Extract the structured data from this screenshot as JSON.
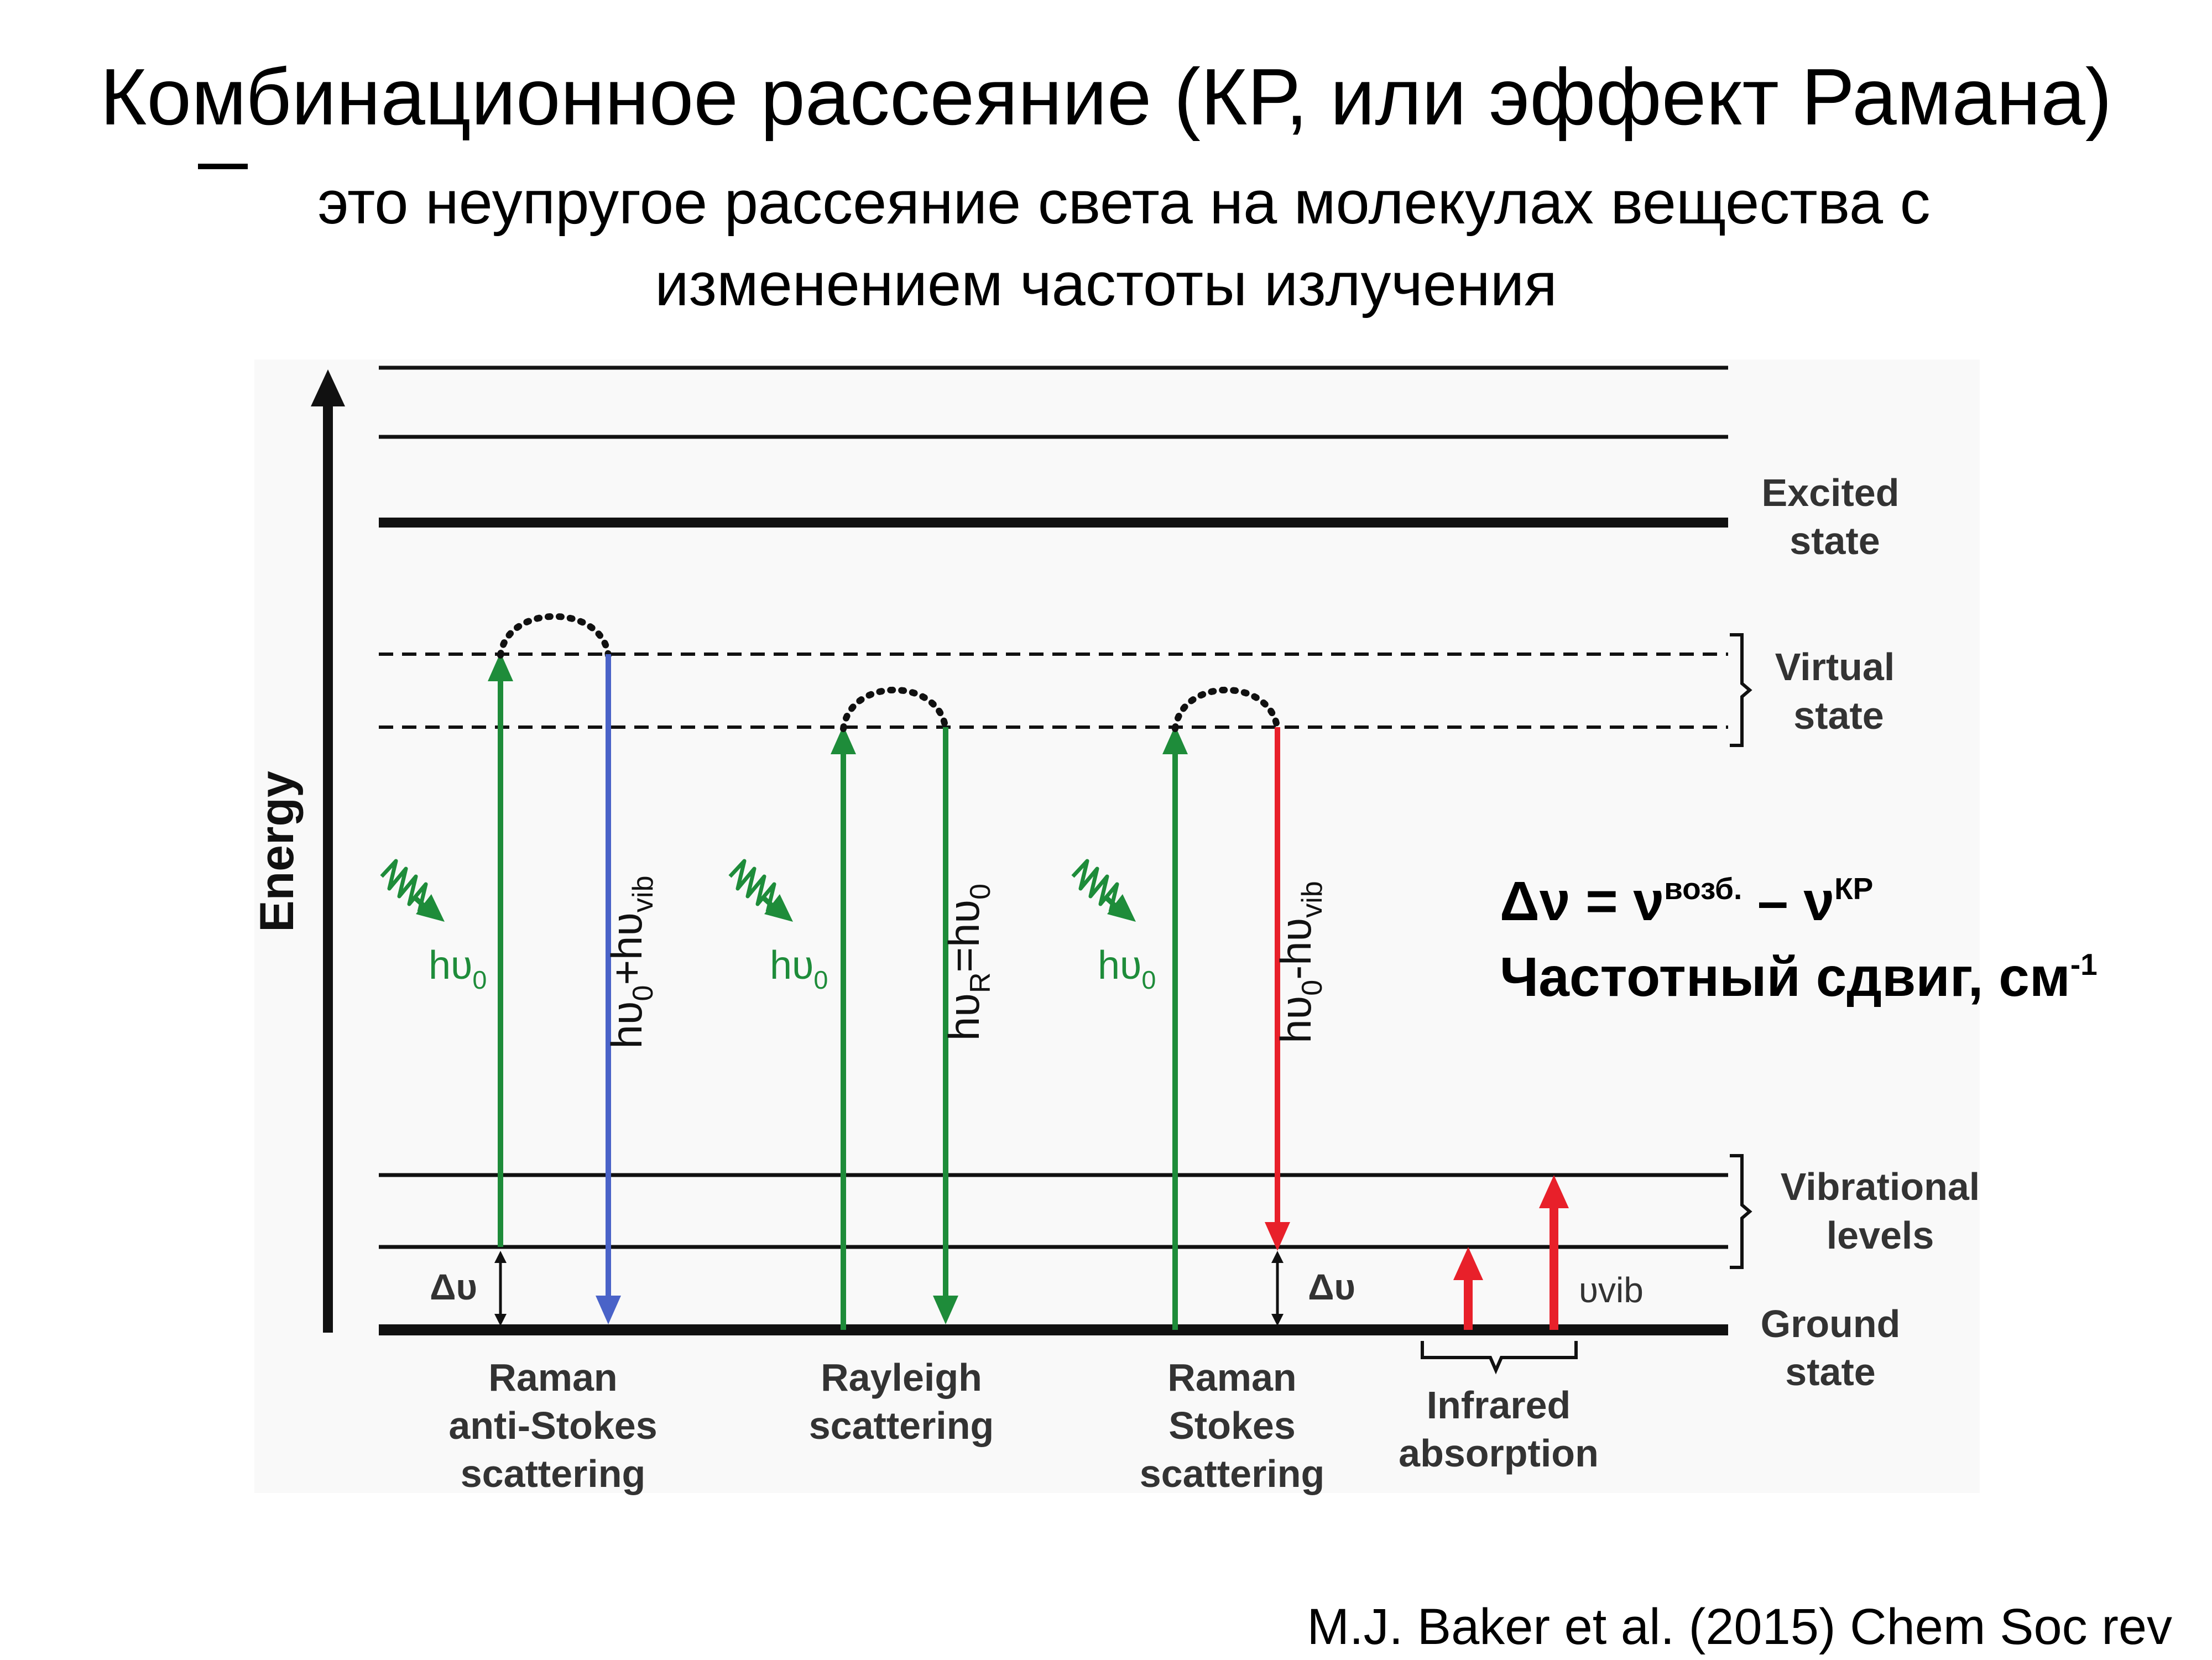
{
  "slide": {
    "title": "Комбинационное рассеяние (КР, или эффект Рамана)",
    "subtitle_line1": "это неупругое рассеяние света на молекулах вещества с",
    "subtitle_line2": "изменением частоты излучения",
    "citation": "M.J. Baker et al. (2015) Chem Soc rev"
  },
  "formula": {
    "line1_delta": "Δν = ν",
    "line1_sup1": "возб.",
    "line1_mid": " – ν",
    "line1_sup2": "КР",
    "line2_text": "Частотный сдвиг, см",
    "line2_sup": "-1"
  },
  "diagram": {
    "axis_label": "Energy",
    "levels": {
      "excited_line1": "Excited",
      "excited_line2": "state",
      "virtual_line1": "Virtual",
      "virtual_line2": "state",
      "vibrational_line1": "Vibrational",
      "vibrational_line2": "levels",
      "ground_line1": "Ground",
      "ground_line2": "state"
    },
    "processes": {
      "anti_stokes": [
        "Raman",
        "anti-Stokes",
        "scattering"
      ],
      "rayleigh": [
        "Rayleigh",
        "scattering"
      ],
      "stokes": [
        "Raman",
        "Stokes",
        "scattering"
      ],
      "infrared": [
        "Infrared",
        "absorption"
      ]
    },
    "photon_labels": {
      "incident": "hυ",
      "incident_sub": "0",
      "anti_stokes_out": "hυ",
      "anti_stokes_out_sub1": "0",
      "anti_stokes_out_mid": "+hυ",
      "anti_stokes_out_sub2": "vib",
      "rayleigh_out": "hυ",
      "rayleigh_out_sub1": "R",
      "rayleigh_out_mid": "=hυ",
      "rayleigh_out_sub2": "0",
      "stokes_out": "hυ",
      "stokes_out_sub1": "0",
      "stokes_out_mid": "-hυ",
      "stokes_out_sub2": "vib",
      "delta": "Δυ",
      "vib": "υvib"
    },
    "colors": {
      "incident": "#1e8c3a",
      "anti_stokes": "#4a63c8",
      "stokes": "#e8202a",
      "infrared": "#e8202a",
      "lines": "#111111",
      "label_text": "#333333"
    }
  }
}
